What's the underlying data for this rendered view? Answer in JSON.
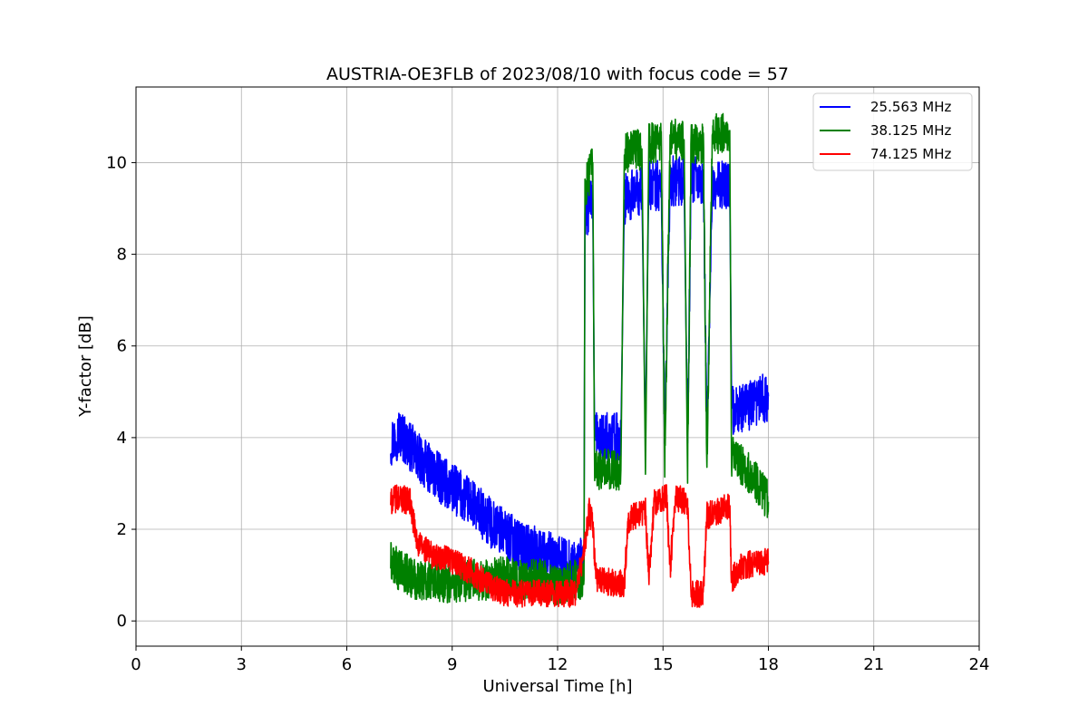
{
  "chart_data": {
    "type": "line",
    "title": "AUSTRIA-OE3FLB of 2023/08/10 with focus code = 57",
    "xlabel": "Universal Time [h]",
    "ylabel": "Y-factor [dB]",
    "xlim": [
      0,
      24
    ],
    "ylim": [
      -0.55,
      11.65
    ],
    "xticks": [
      "0",
      "3",
      "6",
      "9",
      "12",
      "15",
      "18",
      "21",
      "24"
    ],
    "yticks": [
      "0",
      "2",
      "4",
      "6",
      "8",
      "10"
    ],
    "grid": true,
    "legend_position": "top-right",
    "series": [
      {
        "name": "25.563 MHz",
        "color": "#0000ff",
        "noise": 0.55,
        "points": [
          [
            7.25,
            3.9
          ],
          [
            7.5,
            4.1
          ],
          [
            8.0,
            3.6
          ],
          [
            8.5,
            3.2
          ],
          [
            9.0,
            2.9
          ],
          [
            9.5,
            2.6
          ],
          [
            10.0,
            2.2
          ],
          [
            10.5,
            1.9
          ],
          [
            11.0,
            1.6
          ],
          [
            11.5,
            1.5
          ],
          [
            12.0,
            1.3
          ],
          [
            12.5,
            1.2
          ],
          [
            12.75,
            1.3
          ],
          [
            12.78,
            8.8
          ],
          [
            13.0,
            9.2
          ],
          [
            13.05,
            4.0
          ],
          [
            13.8,
            4.0
          ],
          [
            13.9,
            9.2
          ],
          [
            14.4,
            9.4
          ],
          [
            14.5,
            4.0
          ],
          [
            14.6,
            9.5
          ],
          [
            14.95,
            9.5
          ],
          [
            15.05,
            4.0
          ],
          [
            15.2,
            9.6
          ],
          [
            15.6,
            9.6
          ],
          [
            15.7,
            4.1
          ],
          [
            15.8,
            9.6
          ],
          [
            16.15,
            9.6
          ],
          [
            16.25,
            4.0
          ],
          [
            16.4,
            9.5
          ],
          [
            16.9,
            9.5
          ],
          [
            16.95,
            4.6
          ],
          [
            17.5,
            4.7
          ],
          [
            18.0,
            4.9
          ]
        ]
      },
      {
        "name": "38.125 MHz",
        "color": "#008000",
        "noise": 0.45,
        "points": [
          [
            7.25,
            1.3
          ],
          [
            7.5,
            1.1
          ],
          [
            8.0,
            0.9
          ],
          [
            8.5,
            0.9
          ],
          [
            9.0,
            0.8
          ],
          [
            9.5,
            0.9
          ],
          [
            10.0,
            0.9
          ],
          [
            10.5,
            1.0
          ],
          [
            11.0,
            0.9
          ],
          [
            11.5,
            0.9
          ],
          [
            12.0,
            0.8
          ],
          [
            12.5,
            0.9
          ],
          [
            12.75,
            0.9
          ],
          [
            12.78,
            9.4
          ],
          [
            13.0,
            10.0
          ],
          [
            13.05,
            3.3
          ],
          [
            13.8,
            3.3
          ],
          [
            13.9,
            10.2
          ],
          [
            14.4,
            10.3
          ],
          [
            14.5,
            3.2
          ],
          [
            14.6,
            10.4
          ],
          [
            14.95,
            10.5
          ],
          [
            15.05,
            3.4
          ],
          [
            15.2,
            10.5
          ],
          [
            15.6,
            10.5
          ],
          [
            15.7,
            3.2
          ],
          [
            15.8,
            10.4
          ],
          [
            16.15,
            10.4
          ],
          [
            16.25,
            3.2
          ],
          [
            16.4,
            10.6
          ],
          [
            16.9,
            10.7
          ],
          [
            16.95,
            3.6
          ],
          [
            17.5,
            3.2
          ],
          [
            18.0,
            2.6
          ]
        ]
      },
      {
        "name": "74.125 MHz",
        "color": "#ff0000",
        "noise": 0.3,
        "points": [
          [
            7.25,
            2.6
          ],
          [
            7.5,
            2.7
          ],
          [
            7.8,
            2.6
          ],
          [
            8.0,
            1.7
          ],
          [
            8.5,
            1.4
          ],
          [
            9.0,
            1.3
          ],
          [
            9.5,
            1.1
          ],
          [
            10.0,
            0.8
          ],
          [
            10.5,
            0.6
          ],
          [
            11.0,
            0.6
          ],
          [
            11.5,
            0.6
          ],
          [
            12.0,
            0.6
          ],
          [
            12.5,
            0.6
          ],
          [
            12.75,
            1.5
          ],
          [
            12.9,
            2.4
          ],
          [
            13.0,
            2.1
          ],
          [
            13.1,
            0.9
          ],
          [
            13.9,
            0.8
          ],
          [
            14.0,
            2.2
          ],
          [
            14.5,
            2.4
          ],
          [
            14.6,
            1.0
          ],
          [
            14.75,
            2.6
          ],
          [
            15.1,
            2.7
          ],
          [
            15.2,
            1.1
          ],
          [
            15.35,
            2.7
          ],
          [
            15.7,
            2.6
          ],
          [
            15.8,
            0.6
          ],
          [
            16.15,
            0.6
          ],
          [
            16.25,
            2.3
          ],
          [
            16.9,
            2.5
          ],
          [
            16.95,
            0.9
          ],
          [
            17.2,
            1.2
          ],
          [
            18.0,
            1.3
          ]
        ]
      }
    ]
  }
}
